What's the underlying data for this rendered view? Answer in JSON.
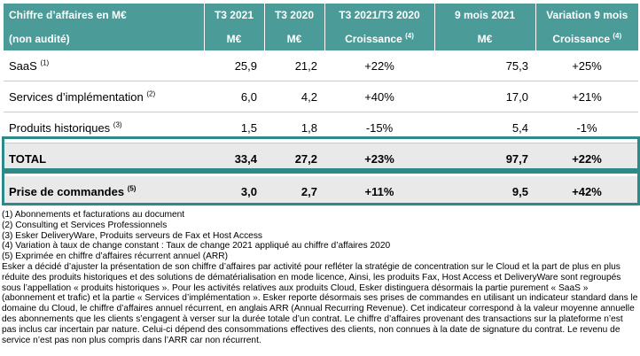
{
  "table": {
    "header_row1": [
      "Chiffre d’affaires en M€",
      "T3 2021",
      "T3 2020",
      "T3 2021/T3 2020",
      "9 mois 2021",
      "Variation 9 mois"
    ],
    "header_row2": [
      "(non audité)",
      "M€",
      "M€",
      "Croissance",
      "M€",
      "Croissance"
    ],
    "header_row2_notes": [
      "",
      "",
      "",
      "(4)",
      "",
      "(4)"
    ],
    "rows": [
      {
        "label": "SaaS",
        "note": "(1)",
        "t3_2021": "25,9",
        "t3_2020": "21,2",
        "growth": "+22%",
        "nine_months": "75,3",
        "var": "+25%"
      },
      {
        "label": "Services d’implémentation",
        "note": "(2)",
        "t3_2021": "6,0",
        "t3_2020": "4,2",
        "growth": "+40%",
        "nine_months": "17,0",
        "var": "+21%"
      },
      {
        "label": "Produits historiques",
        "note": "(3)",
        "t3_2021": "1,5",
        "t3_2020": "1,8",
        "growth": "-15%",
        "nine_months": "5,4",
        "var": "-1%"
      }
    ],
    "total": {
      "label": "TOTAL",
      "note": "",
      "t3_2021": "33,4",
      "t3_2020": "27,2",
      "growth": "+23%",
      "nine_months": "97,7",
      "var": "+22%"
    },
    "orders": {
      "label": "Prise de commandes",
      "note": "(5)",
      "t3_2021": "3,0",
      "t3_2020": "2,7",
      "growth": "+11%",
      "nine_months": "9,5",
      "var": "+42%"
    }
  },
  "notes": [
    "(1) Abonnements et facturations au document",
    "(2) Consulting et Services Professionnels",
    "(3) Esker DeliveryWare, Produits serveurs de Fax et Host Access",
    "(4) Variation à taux de change constant : Taux de change 2021 appliqué au chiffre d’affaires 2020",
    "(5) Exprimée en chiffre d’affaires récurrent annuel (ARR)"
  ],
  "paragraph": "Esker a décidé d’ajuster la présentation de son chiffre d’affaires par activité pour refléter la stratégie de concentration sur le Cloud et la part de plus en plus réduite des produits historiques et des solutions de dématérialisation en mode licence, Ainsi, les produits Fax, Host Access et DeliveryWare sont regroupés sous l’appellation « produits historiques ». Pour les activités relatives aux produits Cloud, Esker distinguera désormais la partie purement « SaaS » (abonnement et trafic) et la partie « Services d’implémentation ». Esker reporte désormais ses prises de commandes en utilisant un indicateur standard dans le domaine du Cloud, le chiffre d’affaires annuel récurrent, en anglais ARR (Annual Recurring Revenue). Cet indicateur correspond à la valeur moyenne annuelle des abonnements que les clients s’engagent à verser sur la durée totale d’un contrat. Le chiffre d’affaires provenant des transactions sur la plateforme n’est pas inclus car incertain par nature. Celui-ci dépend des consommations effectives des clients, non connues à la date de signature du contrat. Le revenu de service n’est pas non plus compris dans l’ARR car non récurrent.",
  "colors": {
    "header_bg": "#4b9b99",
    "box_border": "#2e8a88",
    "total_bg": "#e9e9e9"
  }
}
